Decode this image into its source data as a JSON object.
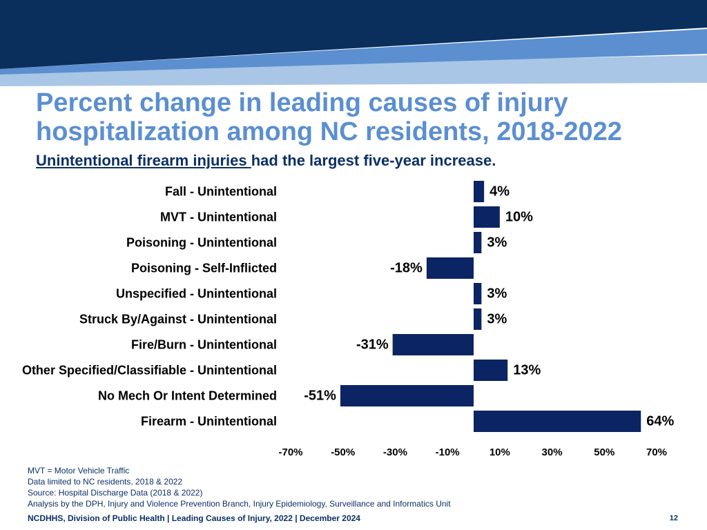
{
  "slide": {
    "title": "Percent change in leading causes of injury hospitalization among NC residents, 2018-2022",
    "subtitle_highlight": "Unintentional firearm injuries ",
    "subtitle_rest": "had the largest five-year increase.",
    "notes": [
      "MVT = Motor Vehicle Traffic",
      "Data limited to NC residents, 2018 & 2022",
      "Source: Hospital Discharge Data (2018 & 2022)",
      "Analysis by the DPH, Injury and Violence Prevention Branch, Injury Epidemiology, Surveillance and Informatics Unit"
    ],
    "footer": "NCDHHS, Division of Public Health | Leading Causes of Injury, 2022 | December 2024",
    "page_number": "12"
  },
  "colors": {
    "banner_dark": "#0b2f5c",
    "banner_mid": "#5b8fd0",
    "banner_light": "#a9c6e6",
    "title": "#5b8fd0",
    "bar": "#0b2463"
  },
  "chart_data": {
    "type": "bar",
    "orientation": "horizontal",
    "categories": [
      "Fall - Unintentional",
      "MVT - Unintentional",
      "Poisoning - Unintentional",
      "Poisoning - Self-Inflicted",
      "Unspecified - Unintentional",
      "Struck By/Against - Unintentional",
      "Fire/Burn - Unintentional",
      "Other Specified/Classifiable - Unintentional",
      "No Mech Or Intent Determined",
      "Firearm - Unintentional"
    ],
    "values": [
      4,
      10,
      3,
      -18,
      3,
      3,
      -31,
      13,
      -51,
      64
    ],
    "value_labels": [
      "4%",
      "10%",
      "3%",
      "-18%",
      "3%",
      "3%",
      "-31%",
      "13%",
      "-51%",
      "64%"
    ],
    "xlim": [
      -70,
      70
    ],
    "xticks": [
      -70,
      -50,
      -30,
      -10,
      10,
      30,
      50,
      70
    ],
    "xtick_labels": [
      "-70%",
      "-50%",
      "-30%",
      "-10%",
      "10%",
      "30%",
      "50%",
      "70%"
    ],
    "xlabel": "",
    "ylabel": "",
    "grid": false
  }
}
